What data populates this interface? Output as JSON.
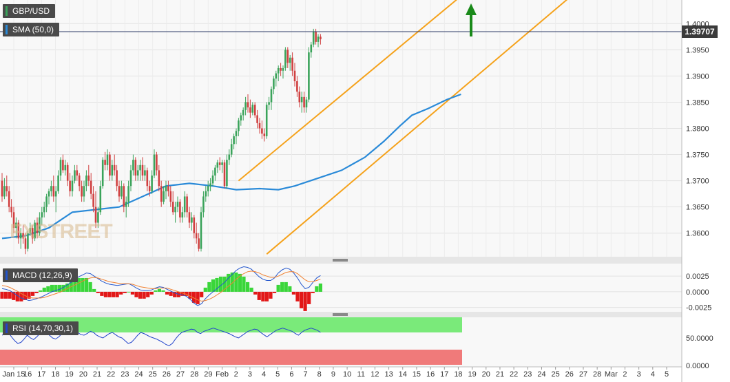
{
  "symbol": "GBP/USD",
  "current_price": "1.39707",
  "watermark": "FXSTREET",
  "colors": {
    "up": "#3aa35a",
    "down": "#d04040",
    "sma": "#2a8ad8",
    "channel": "#f5a21b",
    "arrow": "#1a8a1a",
    "macd_line": "#2255cc",
    "signal_line": "#f08030",
    "rsi_line": "#2244cc",
    "overbought": "#7aea7a",
    "oversold": "#f07a7a"
  },
  "x_axis": {
    "ticks": [
      "Jan 15",
      "16",
      "17",
      "18",
      "19",
      "20",
      "21",
      "22",
      "23",
      "24",
      "25",
      "26",
      "27",
      "28",
      "29",
      "Feb",
      "2",
      "3",
      "4",
      "5",
      "6",
      "7",
      "8",
      "9",
      "10",
      "11",
      "12",
      "13",
      "14",
      "15",
      "16",
      "17",
      "18",
      "19",
      "20",
      "21",
      "22",
      "23",
      "24",
      "25",
      "26",
      "27",
      "28",
      "Mar",
      "2",
      "3",
      "4",
      "5"
    ]
  },
  "price_panel": {
    "indicator_label": "SMA (50,0)",
    "y_ticks": [
      "1.4000",
      "1.3950",
      "1.3900",
      "1.3850",
      "1.3800",
      "1.3750",
      "1.3700",
      "1.3650",
      "1.3600"
    ]
  },
  "macd_panel": {
    "label": "MACD (12,26,9)",
    "y_ticks": [
      "0.0025",
      "0.0000",
      "-0.0025"
    ]
  },
  "rsi_panel": {
    "label": "RSI (14,70,30,1)",
    "y_ticks": [
      "50.0000",
      "0.0000"
    ]
  },
  "chart_data": {
    "type": "candlestick",
    "symbol": "GBP/USD",
    "y_range": [
      1.3555,
      1.4045
    ],
    "candles": [
      [
        1.37,
        1.3715,
        1.366,
        1.367
      ],
      [
        1.367,
        1.3705,
        1.3665,
        1.369
      ],
      [
        1.369,
        1.371,
        1.367,
        1.368
      ],
      [
        1.368,
        1.369,
        1.364,
        1.365
      ],
      [
        1.365,
        1.3665,
        1.363,
        1.364
      ],
      [
        1.364,
        1.365,
        1.36,
        1.361
      ],
      [
        1.361,
        1.363,
        1.359,
        1.362
      ],
      [
        1.362,
        1.3625,
        1.358,
        1.359
      ],
      [
        1.359,
        1.361,
        1.357,
        1.36
      ],
      [
        1.36,
        1.3615,
        1.358,
        1.359
      ],
      [
        1.359,
        1.36,
        1.356,
        1.357
      ],
      [
        1.357,
        1.3605,
        1.3565,
        1.36
      ],
      [
        1.36,
        1.362,
        1.3595,
        1.361
      ],
      [
        1.361,
        1.3615,
        1.358,
        1.359
      ],
      [
        1.359,
        1.3625,
        1.3585,
        1.362
      ],
      [
        1.362,
        1.363,
        1.359,
        1.36
      ],
      [
        1.36,
        1.364,
        1.3595,
        1.363
      ],
      [
        1.363,
        1.365,
        1.3615,
        1.364
      ],
      [
        1.364,
        1.366,
        1.363,
        1.365
      ],
      [
        1.365,
        1.3675,
        1.364,
        1.367
      ],
      [
        1.367,
        1.3685,
        1.3655,
        1.368
      ],
      [
        1.368,
        1.37,
        1.367,
        1.369
      ],
      [
        1.369,
        1.371,
        1.366,
        1.367
      ],
      [
        1.367,
        1.369,
        1.364,
        1.368
      ],
      [
        1.368,
        1.372,
        1.3675,
        1.371
      ],
      [
        1.371,
        1.3745,
        1.37,
        1.374
      ],
      [
        1.374,
        1.375,
        1.3715,
        1.372
      ],
      [
        1.372,
        1.374,
        1.371,
        1.373
      ],
      [
        1.373,
        1.3735,
        1.369,
        1.37
      ],
      [
        1.37,
        1.3715,
        1.367,
        1.368
      ],
      [
        1.368,
        1.371,
        1.367,
        1.37
      ],
      [
        1.37,
        1.373,
        1.3695,
        1.372
      ],
      [
        1.372,
        1.373,
        1.37,
        1.371
      ],
      [
        1.371,
        1.3715,
        1.368,
        1.369
      ],
      [
        1.369,
        1.37,
        1.366,
        1.367
      ],
      [
        1.367,
        1.37,
        1.366,
        1.369
      ],
      [
        1.369,
        1.372,
        1.368,
        1.371
      ],
      [
        1.371,
        1.373,
        1.369,
        1.37
      ],
      [
        1.37,
        1.3715,
        1.3665,
        1.3675
      ],
      [
        1.3675,
        1.369,
        1.364,
        1.365
      ],
      [
        1.365,
        1.368,
        1.361,
        1.362
      ],
      [
        1.362,
        1.365,
        1.361,
        1.364
      ],
      [
        1.364,
        1.37,
        1.3635,
        1.369
      ],
      [
        1.369,
        1.3745,
        1.3685,
        1.374
      ],
      [
        1.374,
        1.3755,
        1.372,
        1.373
      ],
      [
        1.373,
        1.376,
        1.372,
        1.375
      ],
      [
        1.375,
        1.3755,
        1.37,
        1.371
      ],
      [
        1.371,
        1.374,
        1.37,
        1.373
      ],
      [
        1.373,
        1.375,
        1.371,
        1.372
      ],
      [
        1.372,
        1.373,
        1.368,
        1.369
      ],
      [
        1.369,
        1.37,
        1.366,
        1.367
      ],
      [
        1.367,
        1.37,
        1.3665,
        1.369
      ],
      [
        1.369,
        1.3695,
        1.364,
        1.365
      ],
      [
        1.365,
        1.367,
        1.363,
        1.366
      ],
      [
        1.366,
        1.37,
        1.365,
        1.369
      ],
      [
        1.369,
        1.373,
        1.368,
        1.372
      ],
      [
        1.372,
        1.375,
        1.371,
        1.374
      ],
      [
        1.374,
        1.3745,
        1.37,
        1.371
      ],
      [
        1.371,
        1.373,
        1.37,
        1.372
      ],
      [
        1.372,
        1.374,
        1.37,
        1.373
      ],
      [
        1.373,
        1.3745,
        1.37,
        1.371
      ],
      [
        1.371,
        1.373,
        1.37,
        1.372
      ],
      [
        1.372,
        1.3725,
        1.368,
        1.369
      ],
      [
        1.369,
        1.37,
        1.367,
        1.368
      ],
      [
        1.368,
        1.372,
        1.3675,
        1.371
      ],
      [
        1.371,
        1.376,
        1.3705,
        1.375
      ],
      [
        1.375,
        1.3755,
        1.371,
        1.372
      ],
      [
        1.372,
        1.373,
        1.368,
        1.369
      ],
      [
        1.369,
        1.37,
        1.365,
        1.366
      ],
      [
        1.366,
        1.369,
        1.3655,
        1.368
      ],
      [
        1.368,
        1.37,
        1.3665,
        1.369
      ],
      [
        1.369,
        1.37,
        1.367,
        1.368
      ],
      [
        1.368,
        1.369,
        1.365,
        1.366
      ],
      [
        1.366,
        1.368,
        1.3635,
        1.364
      ],
      [
        1.364,
        1.366,
        1.362,
        1.365
      ],
      [
        1.365,
        1.367,
        1.364,
        1.366
      ],
      [
        1.366,
        1.3665,
        1.362,
        1.363
      ],
      [
        1.363,
        1.365,
        1.362,
        1.364
      ],
      [
        1.364,
        1.368,
        1.363,
        1.367
      ],
      [
        1.367,
        1.3675,
        1.363,
        1.364
      ],
      [
        1.364,
        1.365,
        1.361,
        1.362
      ],
      [
        1.362,
        1.364,
        1.3605,
        1.363
      ],
      [
        1.363,
        1.3635,
        1.359,
        1.36
      ],
      [
        1.36,
        1.362,
        1.358,
        1.359
      ],
      [
        1.359,
        1.36,
        1.3565,
        1.357
      ],
      [
        1.357,
        1.365,
        1.3565,
        1.364
      ],
      [
        1.364,
        1.368,
        1.363,
        1.367
      ],
      [
        1.367,
        1.369,
        1.366,
        1.368
      ],
      [
        1.368,
        1.37,
        1.367,
        1.369
      ],
      [
        1.369,
        1.3705,
        1.368,
        1.3695
      ],
      [
        1.3695,
        1.372,
        1.369,
        1.371
      ],
      [
        1.371,
        1.373,
        1.37,
        1.3725
      ],
      [
        1.3725,
        1.374,
        1.3715,
        1.3735
      ],
      [
        1.3735,
        1.3745,
        1.372,
        1.373
      ],
      [
        1.373,
        1.374,
        1.3715,
        1.3735
      ],
      [
        1.3735,
        1.374,
        1.3685,
        1.369
      ],
      [
        1.369,
        1.375,
        1.3685,
        1.374
      ],
      [
        1.374,
        1.376,
        1.373,
        1.375
      ],
      [
        1.375,
        1.378,
        1.3745,
        1.377
      ],
      [
        1.377,
        1.379,
        1.376,
        1.3785
      ],
      [
        1.3785,
        1.38,
        1.377,
        1.3795
      ],
      [
        1.3795,
        1.382,
        1.3785,
        1.3815
      ],
      [
        1.3815,
        1.383,
        1.3805,
        1.3825
      ],
      [
        1.3825,
        1.384,
        1.3815,
        1.3835
      ],
      [
        1.3835,
        1.386,
        1.3825,
        1.385
      ],
      [
        1.385,
        1.3865,
        1.383,
        1.384
      ],
      [
        1.384,
        1.3855,
        1.382,
        1.383
      ],
      [
        1.383,
        1.385,
        1.3825,
        1.3845
      ],
      [
        1.3845,
        1.385,
        1.382,
        1.3825
      ],
      [
        1.3825,
        1.3835,
        1.38,
        1.381
      ],
      [
        1.381,
        1.382,
        1.379,
        1.38
      ],
      [
        1.38,
        1.3815,
        1.378,
        1.379
      ],
      [
        1.379,
        1.38,
        1.3775,
        1.3785
      ],
      [
        1.3785,
        1.385,
        1.378,
        1.3845
      ],
      [
        1.3845,
        1.386,
        1.3835,
        1.385
      ],
      [
        1.385,
        1.388,
        1.3835,
        1.3875
      ],
      [
        1.3875,
        1.39,
        1.3865,
        1.3895
      ],
      [
        1.3895,
        1.391,
        1.388,
        1.3905
      ],
      [
        1.3905,
        1.392,
        1.389,
        1.3915
      ],
      [
        1.3915,
        1.3925,
        1.39,
        1.391
      ],
      [
        1.391,
        1.392,
        1.3895,
        1.3915
      ],
      [
        1.3915,
        1.3955,
        1.391,
        1.395
      ],
      [
        1.395,
        1.3955,
        1.3915,
        1.3925
      ],
      [
        1.3925,
        1.394,
        1.391,
        1.3935
      ],
      [
        1.3935,
        1.3945,
        1.39,
        1.391
      ],
      [
        1.391,
        1.3925,
        1.388,
        1.389
      ],
      [
        1.389,
        1.39,
        1.386,
        1.387
      ],
      [
        1.387,
        1.388,
        1.384,
        1.385
      ],
      [
        1.385,
        1.387,
        1.383,
        1.386
      ],
      [
        1.386,
        1.387,
        1.383,
        1.384
      ],
      [
        1.384,
        1.386,
        1.383,
        1.3855
      ],
      [
        1.3855,
        1.3955,
        1.385,
        1.3945
      ],
      [
        1.3945,
        1.3965,
        1.3935,
        1.396
      ],
      [
        1.396,
        1.399,
        1.3955,
        1.3985
      ],
      [
        1.3985,
        1.399,
        1.396,
        1.3965
      ],
      [
        1.3965,
        1.398,
        1.3955,
        1.3975
      ],
      [
        1.3975,
        1.398,
        1.396,
        1.397
      ]
    ],
    "sma_50": [
      [
        0,
        1.359
      ],
      [
        10,
        1.3595
      ],
      [
        20,
        1.361
      ],
      [
        30,
        1.364
      ],
      [
        40,
        1.3645
      ],
      [
        50,
        1.365
      ],
      [
        60,
        1.367
      ],
      [
        70,
        1.369
      ],
      [
        80,
        1.3695
      ],
      [
        90,
        1.369
      ],
      [
        100,
        1.3683
      ],
      [
        110,
        1.3685
      ],
      [
        118,
        1.3683
      ],
      [
        125,
        1.369
      ],
      [
        135,
        1.3705
      ],
      [
        145,
        1.372
      ],
      [
        155,
        1.3745
      ],
      [
        163,
        1.3775
      ],
      [
        170,
        1.3805
      ],
      [
        175,
        1.3825
      ],
      [
        182,
        1.3838
      ],
      [
        190,
        1.3855
      ],
      [
        196,
        1.3865
      ]
    ],
    "channel_upper": [
      [
        101,
        1.37
      ],
      [
        198,
        1.406
      ]
    ],
    "channel_lower": [
      [
        113,
        1.356
      ],
      [
        245,
        1.406
      ]
    ],
    "macd": [
      0.0005,
      0.0004,
      0.0002,
      -0.0002,
      -0.0006,
      -0.001,
      -0.0012,
      -0.0014,
      -0.0013,
      -0.0011,
      -0.0009,
      -0.0006,
      -0.0003,
      0.0,
      0.0002,
      0.0004,
      0.0007,
      0.0011,
      0.0015,
      0.002,
      0.0024,
      0.0027,
      0.003,
      0.0029,
      0.0025,
      0.0021,
      0.0017,
      0.0014,
      0.0012,
      0.0011,
      0.001,
      0.0011,
      0.0012,
      0.0013,
      0.001,
      0.0006,
      0.0003,
      0.0002,
      0.0002,
      0.0003,
      0.0006,
      0.0008,
      0.0007,
      0.0004,
      0.0001,
      -0.0002,
      -0.0004,
      -0.0005,
      -0.0007,
      -0.0012,
      -0.0018,
      -0.0022,
      -0.0019,
      -0.0011,
      -0.0005,
      0.0,
      0.0005,
      0.001,
      0.0015,
      0.0022,
      0.0028,
      0.0034,
      0.0038,
      0.004,
      0.0039,
      0.0036,
      0.003,
      0.0024,
      0.002,
      0.0018,
      0.0018,
      0.0022,
      0.003,
      0.0035,
      0.0038,
      0.0036,
      0.003,
      0.0022,
      0.0012,
      0.0005,
      0.0007,
      0.0015,
      0.0022,
      0.0026
    ],
    "signal": [
      0.001,
      0.0009,
      0.0007,
      0.0004,
      0.0001,
      -0.0003,
      -0.0006,
      -0.0009,
      -0.001,
      -0.001,
      -0.001,
      -0.0009,
      -0.0007,
      -0.0005,
      -0.0003,
      -0.0001,
      0.0002,
      0.0005,
      0.0008,
      0.0011,
      0.0014,
      0.0017,
      0.002,
      0.0022,
      0.0023,
      0.0022,
      0.002,
      0.0018,
      0.0016,
      0.0015,
      0.0014,
      0.0013,
      0.0013,
      0.0013,
      0.0012,
      0.001,
      0.0008,
      0.0007,
      0.0006,
      0.0005,
      0.0005,
      0.0006,
      0.0006,
      0.0006,
      0.0004,
      0.0002,
      0.0,
      -0.0002,
      -0.0004,
      -0.0007,
      -0.001,
      -0.0013,
      -0.0015,
      -0.0014,
      -0.0012,
      -0.0009,
      -0.0005,
      -0.0001,
      0.0004,
      0.0009,
      0.0014,
      0.002,
      0.0025,
      0.0029,
      0.0032,
      0.0033,
      0.0032,
      0.003,
      0.0027,
      0.0025,
      0.0023,
      0.0023,
      0.0025,
      0.0028,
      0.0031,
      0.0032,
      0.0032,
      0.0029,
      0.0024,
      0.0019,
      0.0016,
      0.0016,
      0.0018,
      0.002
    ],
    "macd_range": [
      -0.0032,
      0.0045
    ],
    "rsi": [
      55,
      58,
      60,
      52,
      45,
      40,
      42,
      48,
      55,
      50,
      47,
      52,
      58,
      62,
      60,
      55,
      50,
      48,
      52,
      58,
      62,
      66,
      68,
      64,
      60,
      56,
      55,
      58,
      62,
      60,
      55,
      52,
      50,
      54,
      58,
      60,
      56,
      52,
      50,
      45,
      40,
      42,
      48,
      55,
      60,
      58,
      55,
      52,
      50,
      48,
      45,
      42,
      38,
      36,
      40,
      48,
      55,
      60,
      62,
      64,
      66,
      65,
      60,
      58,
      62,
      64,
      66,
      68,
      66,
      64,
      62,
      60,
      58,
      55,
      52,
      50,
      54,
      58,
      62,
      64,
      66,
      65,
      60,
      56,
      52,
      56,
      60,
      64,
      66,
      68,
      66,
      64,
      62,
      58,
      55,
      60,
      64,
      66,
      68,
      66,
      64,
      60
    ],
    "rsi_levels": {
      "overbought": 70,
      "oversold": 30
    },
    "rsi_range": [
      0,
      100
    ]
  }
}
